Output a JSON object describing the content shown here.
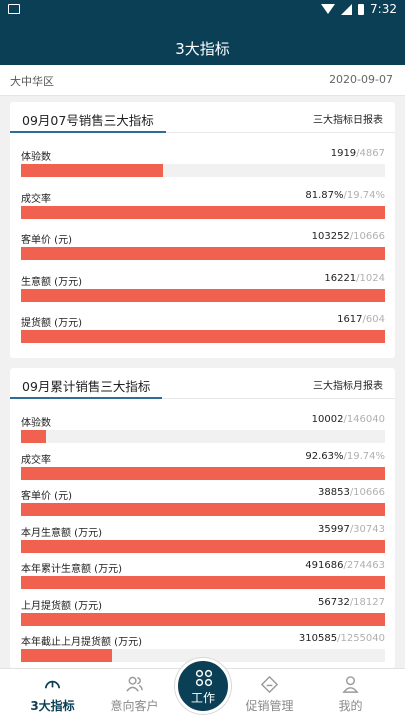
{
  "status_bar": {
    "time": "7:32"
  },
  "header": {
    "title": "3大指标"
  },
  "filter": {
    "region": "大中华区",
    "date": "2020-09-07"
  },
  "daily": {
    "title": "09月07号销售三大指标",
    "link": "三大指标日报表",
    "metrics": [
      {
        "label": "体验数",
        "value": "1919",
        "target": "/4867",
        "progress": 0.39
      },
      {
        "label": "成交率",
        "value": "81.87%",
        "target": "/19.74%",
        "progress": 1.0
      },
      {
        "label": "客单价 (元)",
        "value": "103252",
        "target": "/10666",
        "progress": 1.0
      },
      {
        "label": "生意额 (万元)",
        "value": "16221",
        "target": "/1024",
        "progress": 1.0
      },
      {
        "label": "提货额 (万元)",
        "value": "1617",
        "target": "/604",
        "progress": 1.0
      }
    ]
  },
  "monthly": {
    "title": "09月累计销售三大指标",
    "link": "三大指标月报表",
    "metrics": [
      {
        "label": "体验数",
        "value": "10002",
        "target": "/146040",
        "progress": 0.07
      },
      {
        "label": "成交率",
        "value": "92.63%",
        "target": "/19.74%",
        "progress": 1.0
      },
      {
        "label": "客单价 (元)",
        "value": "38853",
        "target": "/10666",
        "progress": 1.0
      },
      {
        "label": "本月生意额 (万元)",
        "value": "35997",
        "target": "/30743",
        "progress": 1.0
      },
      {
        "label": "本年累计生意额 (万元)",
        "value": "491686",
        "target": "/274463",
        "progress": 1.0
      },
      {
        "label": "上月提货额 (万元)",
        "value": "56732",
        "target": "/18127",
        "progress": 1.0
      },
      {
        "label": "本年截止上月提货额 (万元)",
        "value": "310585",
        "target": "/1255040",
        "progress": 0.25
      }
    ]
  },
  "tabbar": {
    "tabs": [
      {
        "label": "3大指标",
        "icon": "speedometer-icon"
      },
      {
        "label": "意向客户",
        "icon": "users-icon"
      },
      {
        "label": "工作",
        "icon": "grid-icon"
      },
      {
        "label": "促销管理",
        "icon": "tag-icon"
      },
      {
        "label": "我的",
        "icon": "person-icon"
      }
    ]
  },
  "colors": {
    "primary": "#0a3f55",
    "bar": "#f0624f",
    "accent": "#2c6e96"
  }
}
